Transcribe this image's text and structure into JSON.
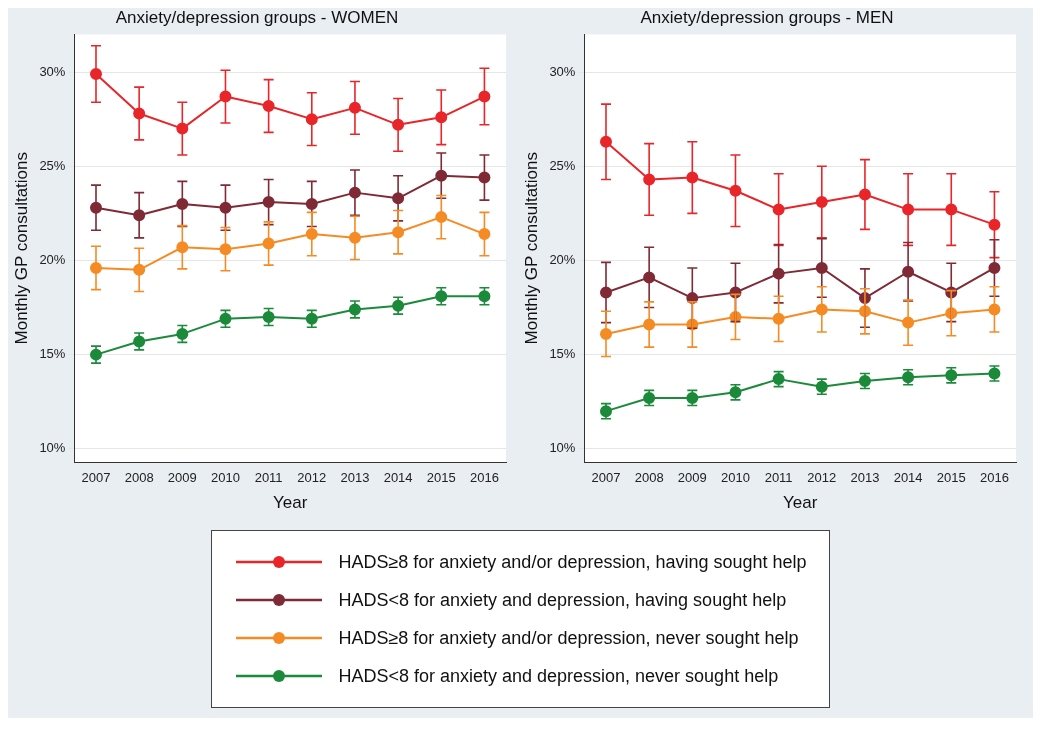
{
  "chart_data": [
    {
      "type": "line",
      "title": "Anxiety/depression groups - WOMEN",
      "xlabel": "Year",
      "ylabel": "Monthly GP consultations",
      "categories": [
        "2007",
        "2008",
        "2009",
        "2010",
        "2011",
        "2012",
        "2013",
        "2014",
        "2015",
        "2016"
      ],
      "ylim": [
        9.3,
        32
      ],
      "yticks": [
        {
          "value": 10,
          "label": "10%"
        },
        {
          "value": 15,
          "label": "15%"
        },
        {
          "value": 20,
          "label": "20%"
        },
        {
          "value": 25,
          "label": "25%"
        },
        {
          "value": 30,
          "label": "30%"
        }
      ],
      "grid": "y",
      "marker": "circle",
      "legend": "bottom",
      "series": [
        {
          "name": "HADS≥8 for anxiety and/or depression, having sought help",
          "color": "#e8262a",
          "values": [
            29.9,
            27.8,
            27.0,
            28.7,
            28.2,
            27.5,
            28.1,
            27.2,
            27.6,
            28.7
          ],
          "errors": [
            1.5,
            1.4,
            1.4,
            1.4,
            1.4,
            1.4,
            1.4,
            1.4,
            1.45,
            1.5
          ]
        },
        {
          "name": "HADS<8 for anxiety and depression, having sought help",
          "color": "#7f2a35",
          "values": [
            22.8,
            22.4,
            23.0,
            22.8,
            23.1,
            23.0,
            23.6,
            23.3,
            24.5,
            24.4
          ],
          "errors": [
            1.2,
            1.2,
            1.2,
            1.2,
            1.2,
            1.2,
            1.2,
            1.2,
            1.2,
            1.2
          ]
        },
        {
          "name": "HADS≥8 for anxiety and/or depression, never sought help",
          "color": "#f58b24",
          "values": [
            19.6,
            19.5,
            20.7,
            20.6,
            20.9,
            21.4,
            21.2,
            21.5,
            22.3,
            21.4
          ],
          "errors": [
            1.15,
            1.15,
            1.15,
            1.15,
            1.15,
            1.15,
            1.15,
            1.15,
            1.15,
            1.15
          ]
        },
        {
          "name": "HADS<8 for anxiety and depression, never sought help",
          "color": "#1b8a3a",
          "values": [
            15.0,
            15.7,
            16.1,
            16.9,
            17.0,
            16.9,
            17.4,
            17.6,
            18.1,
            18.1
          ],
          "errors": [
            0.45,
            0.45,
            0.45,
            0.45,
            0.45,
            0.45,
            0.45,
            0.45,
            0.45,
            0.45
          ]
        }
      ]
    },
    {
      "type": "line",
      "title": "Anxiety/depression groups - MEN",
      "xlabel": "Year",
      "ylabel": "Monthly GP consultations",
      "categories": [
        "2007",
        "2008",
        "2009",
        "2010",
        "2011",
        "2012",
        "2013",
        "2014",
        "2015",
        "2016"
      ],
      "ylim": [
        9.3,
        32
      ],
      "yticks": [
        {
          "value": 10,
          "label": "10%"
        },
        {
          "value": 15,
          "label": "15%"
        },
        {
          "value": 20,
          "label": "20%"
        },
        {
          "value": 25,
          "label": "25%"
        },
        {
          "value": 30,
          "label": "30%"
        }
      ],
      "grid": "y",
      "marker": "circle",
      "series": [
        {
          "color": "#e8262a",
          "values": [
            26.3,
            24.3,
            24.4,
            23.7,
            22.7,
            23.1,
            23.5,
            22.7,
            22.7,
            21.9
          ],
          "errors": [
            2.0,
            1.9,
            1.9,
            1.9,
            1.9,
            1.9,
            1.85,
            1.9,
            1.9,
            1.75
          ]
        },
        {
          "color": "#7f2a35",
          "values": [
            18.3,
            19.1,
            18.0,
            18.3,
            19.3,
            19.6,
            18.0,
            19.4,
            18.3,
            19.6
          ],
          "errors": [
            1.6,
            1.6,
            1.6,
            1.55,
            1.55,
            1.55,
            1.55,
            1.55,
            1.55,
            1.5
          ]
        },
        {
          "color": "#f58b24",
          "values": [
            16.1,
            16.6,
            16.6,
            17.0,
            16.9,
            17.4,
            17.3,
            16.7,
            17.2,
            17.4
          ],
          "errors": [
            1.2,
            1.2,
            1.2,
            1.2,
            1.2,
            1.2,
            1.2,
            1.2,
            1.2,
            1.2
          ]
        },
        {
          "color": "#1b8a3a",
          "values": [
            12.0,
            12.7,
            12.7,
            13.0,
            13.7,
            13.3,
            13.6,
            13.8,
            13.9,
            14.0
          ],
          "errors": [
            0.4,
            0.4,
            0.4,
            0.4,
            0.4,
            0.4,
            0.4,
            0.4,
            0.4,
            0.4
          ]
        }
      ]
    }
  ]
}
